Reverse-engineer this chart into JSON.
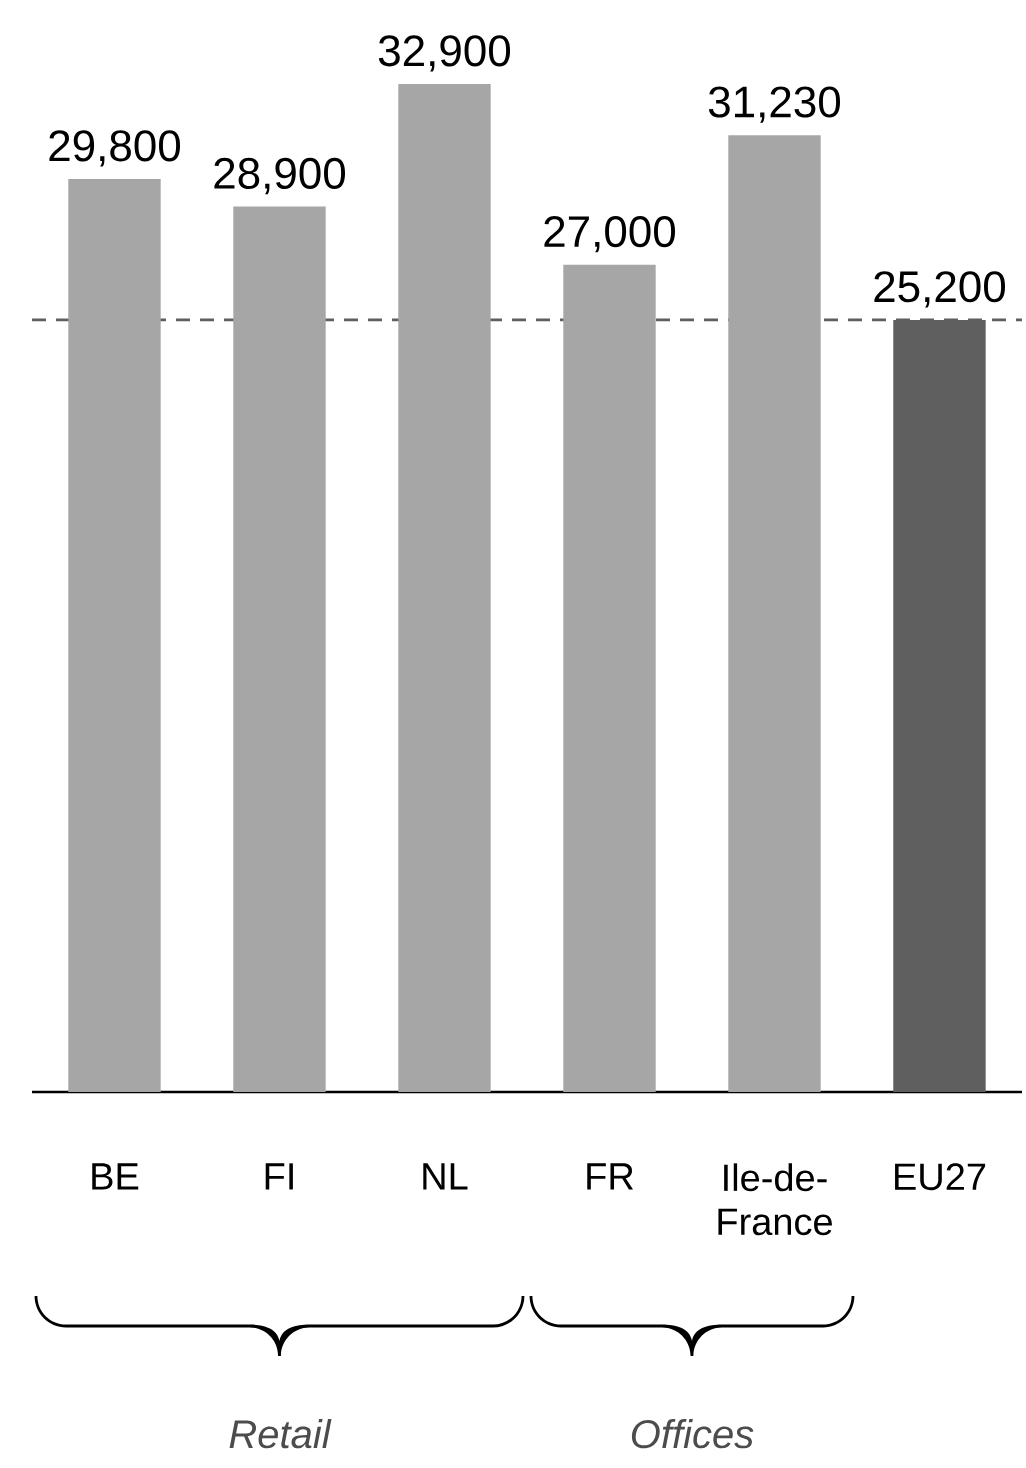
{
  "chart_data": {
    "type": "bar",
    "categories": [
      "BE",
      "FI",
      "NL",
      "FR",
      "Ile-de-France",
      "EU27"
    ],
    "values": [
      29800,
      28900,
      32900,
      27000,
      31230,
      25200
    ],
    "colors": [
      "#a6a6a6",
      "#a6a6a6",
      "#a6a6a6",
      "#a6a6a6",
      "#a6a6a6",
      "#5f5f5f"
    ],
    "value_labels": [
      "29,800",
      "28,900",
      "32,900",
      "27,000",
      "31,230",
      "25,200"
    ],
    "tick_labels": "x",
    "ref_lines": [
      {
        "axis": "y",
        "value": 25200,
        "color": "#5f5f5f",
        "line_style": "dashed"
      }
    ],
    "annotations": [
      "Retail",
      "Offices"
    ]
  }
}
